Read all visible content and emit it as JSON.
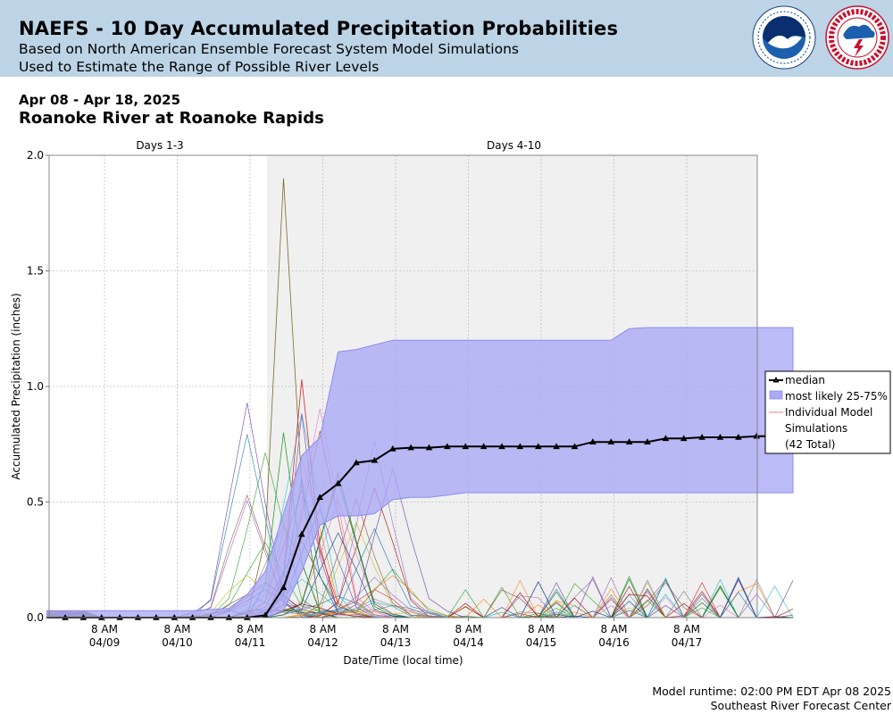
{
  "header": {
    "title": "NAEFS - 10 Day Accumulated Precipitation Probabilities",
    "subtitle1": "Based on North American Ensemble Forecast System Model Simulations",
    "subtitle2": "Used to Estimate the Range of Possible River Levels",
    "logo1_icon": "noaa-logo-icon",
    "logo2_icon": "national-weather-service-logo-icon"
  },
  "period": "Apr 08 - Apr 18, 2025",
  "location": "Roanoke River at Roanoke Rapids",
  "footer": {
    "runtime": "Model runtime: 02:00 PM EDT Apr 08 2025",
    "center": "Southeast River Forecast Center"
  },
  "colors": {
    "band": "#aaaaf6",
    "band_edge": "#8c8cf0",
    "median": "#000000",
    "shade": "#f0f0f0",
    "header_bg": "#bcd4e6"
  },
  "chart_data": {
    "type": "line",
    "xlabel": "Date/Time (local time)",
    "ylabel": "Accumulated Precipitation (inches)",
    "ylim": [
      0,
      2.0
    ],
    "yticks": [
      "0.0",
      "0.5",
      "1.0",
      "1.5",
      "2.0"
    ],
    "xticks": [
      {
        "time": "8 AM",
        "date": "04/09"
      },
      {
        "time": "8 AM",
        "date": "04/10"
      },
      {
        "time": "8 AM",
        "date": "04/11"
      },
      {
        "time": "8 AM",
        "date": "04/12"
      },
      {
        "time": "8 AM",
        "date": "04/13"
      },
      {
        "time": "8 AM",
        "date": "04/14"
      },
      {
        "time": "8 AM",
        "date": "04/15"
      },
      {
        "time": "8 AM",
        "date": "04/16"
      },
      {
        "time": "8 AM",
        "date": "04/17"
      }
    ],
    "grid": true,
    "regions": [
      "Days 1-3",
      "Days 4-10"
    ],
    "legend_position": "right",
    "legend": {
      "median": "median",
      "band": "most likely 25-75%",
      "members": "Individual Model",
      "members2": "Simulations",
      "members3": "(42 Total)"
    },
    "median": [
      0,
      0,
      0,
      0,
      0,
      0,
      0,
      0,
      0,
      0,
      0,
      0,
      0.01,
      0.13,
      0.36,
      0.52,
      0.58,
      0.67,
      0.68,
      0.73,
      0.735,
      0.735,
      0.74,
      0.74,
      0.74,
      0.74,
      0.74,
      0.74,
      0.74,
      0.74,
      0.76,
      0.76,
      0.76,
      0.76,
      0.775,
      0.775,
      0.78,
      0.78,
      0.78,
      0.785,
      0.785,
      0.785
    ],
    "band_high": [
      0.03,
      0.03,
      0.03,
      0.03,
      0.03,
      0.03,
      0.03,
      0.03,
      0.03,
      0.035,
      0.04,
      0.1,
      0.2,
      0.45,
      0.7,
      0.78,
      1.15,
      1.16,
      1.18,
      1.2,
      1.2,
      1.2,
      1.2,
      1.2,
      1.2,
      1.2,
      1.2,
      1.2,
      1.2,
      1.2,
      1.2,
      1.2,
      1.25,
      1.255,
      1.255,
      1.255,
      1.255,
      1.255,
      1.255,
      1.255,
      1.255,
      1.255
    ],
    "band_low": [
      0,
      0,
      0,
      0,
      0,
      0,
      0,
      0,
      0,
      0,
      0,
      0,
      0,
      0.03,
      0.2,
      0.4,
      0.44,
      0.44,
      0.45,
      0.51,
      0.52,
      0.52,
      0.53,
      0.54,
      0.54,
      0.54,
      0.54,
      0.54,
      0.54,
      0.54,
      0.54,
      0.54,
      0.54,
      0.54,
      0.54,
      0.54,
      0.54,
      0.54,
      0.54,
      0.54,
      0.54,
      0.54
    ]
  }
}
